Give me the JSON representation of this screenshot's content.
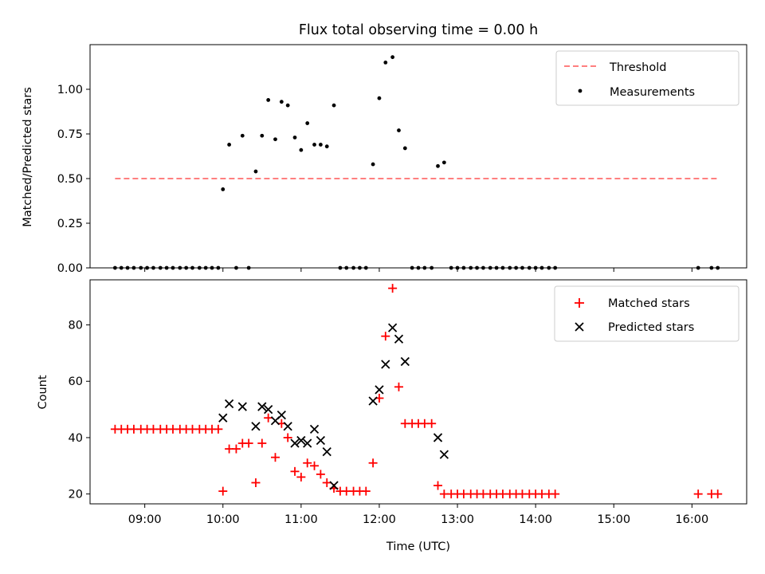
{
  "chart_data": [
    {
      "type": "scatter",
      "title": "Flux total observing time = 0.00 h",
      "xlabel": "",
      "ylabel": "Matched/Predicted stars",
      "xlim": [
        8.3,
        16.7
      ],
      "ylim": [
        0,
        1.25
      ],
      "yticks": [
        0.0,
        0.25,
        0.5,
        0.75,
        1.0
      ],
      "ytick_labels": [
        "0.00",
        "0.25",
        "0.50",
        "0.75",
        "1.00"
      ],
      "xticks": [
        9,
        10,
        11,
        12,
        13,
        14,
        15,
        16
      ],
      "xtick_labels": [
        "",
        "",
        "",
        "",
        "",
        "",
        "",
        ""
      ],
      "legend_position": "top-right",
      "threshold": {
        "name": "Threshold",
        "value": 0.5,
        "x_range": [
          8.62,
          16.33
        ],
        "color": "#ff7f7f",
        "style": "dashed"
      },
      "series": [
        {
          "name": "Measurements",
          "marker": "dot",
          "color": "#000000",
          "points": [
            [
              8.62,
              0
            ],
            [
              8.7,
              0
            ],
            [
              8.78,
              0
            ],
            [
              8.86,
              0
            ],
            [
              8.95,
              0
            ],
            [
              9.03,
              0
            ],
            [
              9.11,
              0
            ],
            [
              9.2,
              0
            ],
            [
              9.28,
              0
            ],
            [
              9.36,
              0
            ],
            [
              9.45,
              0
            ],
            [
              9.53,
              0
            ],
            [
              9.61,
              0
            ],
            [
              9.7,
              0
            ],
            [
              9.78,
              0
            ],
            [
              9.86,
              0
            ],
            [
              9.94,
              0
            ],
            [
              10.0,
              0.44
            ],
            [
              10.08,
              0.69
            ],
            [
              10.17,
              0
            ],
            [
              10.25,
              0.74
            ],
            [
              10.33,
              0
            ],
            [
              10.42,
              0.54
            ],
            [
              10.5,
              0.74
            ],
            [
              10.58,
              0.94
            ],
            [
              10.67,
              0.72
            ],
            [
              10.75,
              0.93
            ],
            [
              10.83,
              0.91
            ],
            [
              10.92,
              0.73
            ],
            [
              11.0,
              0.66
            ],
            [
              11.08,
              0.81
            ],
            [
              11.17,
              0.69
            ],
            [
              11.25,
              0.69
            ],
            [
              11.33,
              0.68
            ],
            [
              11.42,
              0.91
            ],
            [
              11.5,
              0
            ],
            [
              11.58,
              0
            ],
            [
              11.67,
              0
            ],
            [
              11.75,
              0
            ],
            [
              11.83,
              0
            ],
            [
              11.92,
              0.58
            ],
            [
              12.0,
              0.95
            ],
            [
              12.08,
              1.15
            ],
            [
              12.17,
              1.18
            ],
            [
              12.25,
              0.77
            ],
            [
              12.33,
              0.67
            ],
            [
              12.42,
              0
            ],
            [
              12.5,
              0
            ],
            [
              12.58,
              0
            ],
            [
              12.67,
              0
            ],
            [
              12.75,
              0.57
            ],
            [
              12.83,
              0.59
            ],
            [
              12.92,
              0
            ],
            [
              13.0,
              0
            ],
            [
              13.08,
              0
            ],
            [
              13.17,
              0
            ],
            [
              13.25,
              0
            ],
            [
              13.33,
              0
            ],
            [
              13.42,
              0
            ],
            [
              13.5,
              0
            ],
            [
              13.58,
              0
            ],
            [
              13.67,
              0
            ],
            [
              13.75,
              0
            ],
            [
              13.83,
              0
            ],
            [
              13.92,
              0
            ],
            [
              14.0,
              0
            ],
            [
              14.08,
              0
            ],
            [
              14.17,
              0
            ],
            [
              14.25,
              0
            ],
            [
              16.08,
              0
            ],
            [
              16.25,
              0
            ],
            [
              16.33,
              0
            ]
          ]
        }
      ]
    },
    {
      "type": "scatter",
      "title": "",
      "xlabel": "Time (UTC)",
      "ylabel": "Count",
      "xlim": [
        8.3,
        16.7
      ],
      "ylim": [
        16.5,
        96
      ],
      "yticks": [
        20,
        40,
        60,
        80
      ],
      "ytick_labels": [
        "20",
        "40",
        "60",
        "80"
      ],
      "xticks": [
        9,
        10,
        11,
        12,
        13,
        14,
        15,
        16
      ],
      "xtick_labels": [
        "09:00",
        "10:00",
        "11:00",
        "12:00",
        "13:00",
        "14:00",
        "15:00",
        "16:00"
      ],
      "legend_position": "top-right",
      "series": [
        {
          "name": "Matched stars",
          "marker": "plus",
          "color": "#ff0000",
          "points": [
            [
              8.62,
              43
            ],
            [
              8.7,
              43
            ],
            [
              8.78,
              43
            ],
            [
              8.86,
              43
            ],
            [
              8.95,
              43
            ],
            [
              9.03,
              43
            ],
            [
              9.11,
              43
            ],
            [
              9.2,
              43
            ],
            [
              9.28,
              43
            ],
            [
              9.36,
              43
            ],
            [
              9.45,
              43
            ],
            [
              9.53,
              43
            ],
            [
              9.61,
              43
            ],
            [
              9.7,
              43
            ],
            [
              9.78,
              43
            ],
            [
              9.86,
              43
            ],
            [
              9.94,
              43
            ],
            [
              10.0,
              21
            ],
            [
              10.08,
              36
            ],
            [
              10.17,
              36
            ],
            [
              10.25,
              38
            ],
            [
              10.33,
              38
            ],
            [
              10.42,
              24
            ],
            [
              10.5,
              38
            ],
            [
              10.58,
              47
            ],
            [
              10.67,
              33
            ],
            [
              10.75,
              45
            ],
            [
              10.83,
              40
            ],
            [
              10.92,
              28
            ],
            [
              11.0,
              26
            ],
            [
              11.08,
              31
            ],
            [
              11.17,
              30
            ],
            [
              11.25,
              27
            ],
            [
              11.33,
              24
            ],
            [
              11.42,
              22
            ],
            [
              11.5,
              21
            ],
            [
              11.58,
              21
            ],
            [
              11.67,
              21
            ],
            [
              11.75,
              21
            ],
            [
              11.83,
              21
            ],
            [
              11.92,
              31
            ],
            [
              12.0,
              54
            ],
            [
              12.08,
              76
            ],
            [
              12.17,
              93
            ],
            [
              12.25,
              58
            ],
            [
              12.33,
              45
            ],
            [
              12.42,
              45
            ],
            [
              12.5,
              45
            ],
            [
              12.58,
              45
            ],
            [
              12.67,
              45
            ],
            [
              12.75,
              23
            ],
            [
              12.83,
              20
            ],
            [
              12.92,
              20
            ],
            [
              13.0,
              20
            ],
            [
              13.08,
              20
            ],
            [
              13.17,
              20
            ],
            [
              13.25,
              20
            ],
            [
              13.33,
              20
            ],
            [
              13.42,
              20
            ],
            [
              13.5,
              20
            ],
            [
              13.58,
              20
            ],
            [
              13.67,
              20
            ],
            [
              13.75,
              20
            ],
            [
              13.83,
              20
            ],
            [
              13.92,
              20
            ],
            [
              14.0,
              20
            ],
            [
              14.08,
              20
            ],
            [
              14.17,
              20
            ],
            [
              14.25,
              20
            ],
            [
              16.08,
              20
            ],
            [
              16.25,
              20
            ],
            [
              16.33,
              20
            ]
          ]
        },
        {
          "name": "Predicted stars",
          "marker": "x",
          "color": "#000000",
          "points": [
            [
              10.0,
              47
            ],
            [
              10.08,
              52
            ],
            [
              10.25,
              51
            ],
            [
              10.42,
              44
            ],
            [
              10.5,
              51
            ],
            [
              10.58,
              50
            ],
            [
              10.67,
              46
            ],
            [
              10.75,
              48
            ],
            [
              10.83,
              44
            ],
            [
              10.92,
              38
            ],
            [
              11.0,
              39
            ],
            [
              11.08,
              38
            ],
            [
              11.17,
              43
            ],
            [
              11.25,
              39
            ],
            [
              11.33,
              35
            ],
            [
              11.42,
              23
            ],
            [
              11.92,
              53
            ],
            [
              12.0,
              57
            ],
            [
              12.08,
              66
            ],
            [
              12.17,
              79
            ],
            [
              12.25,
              75
            ],
            [
              12.33,
              67
            ],
            [
              12.75,
              40
            ],
            [
              12.83,
              34
            ]
          ]
        }
      ]
    }
  ]
}
